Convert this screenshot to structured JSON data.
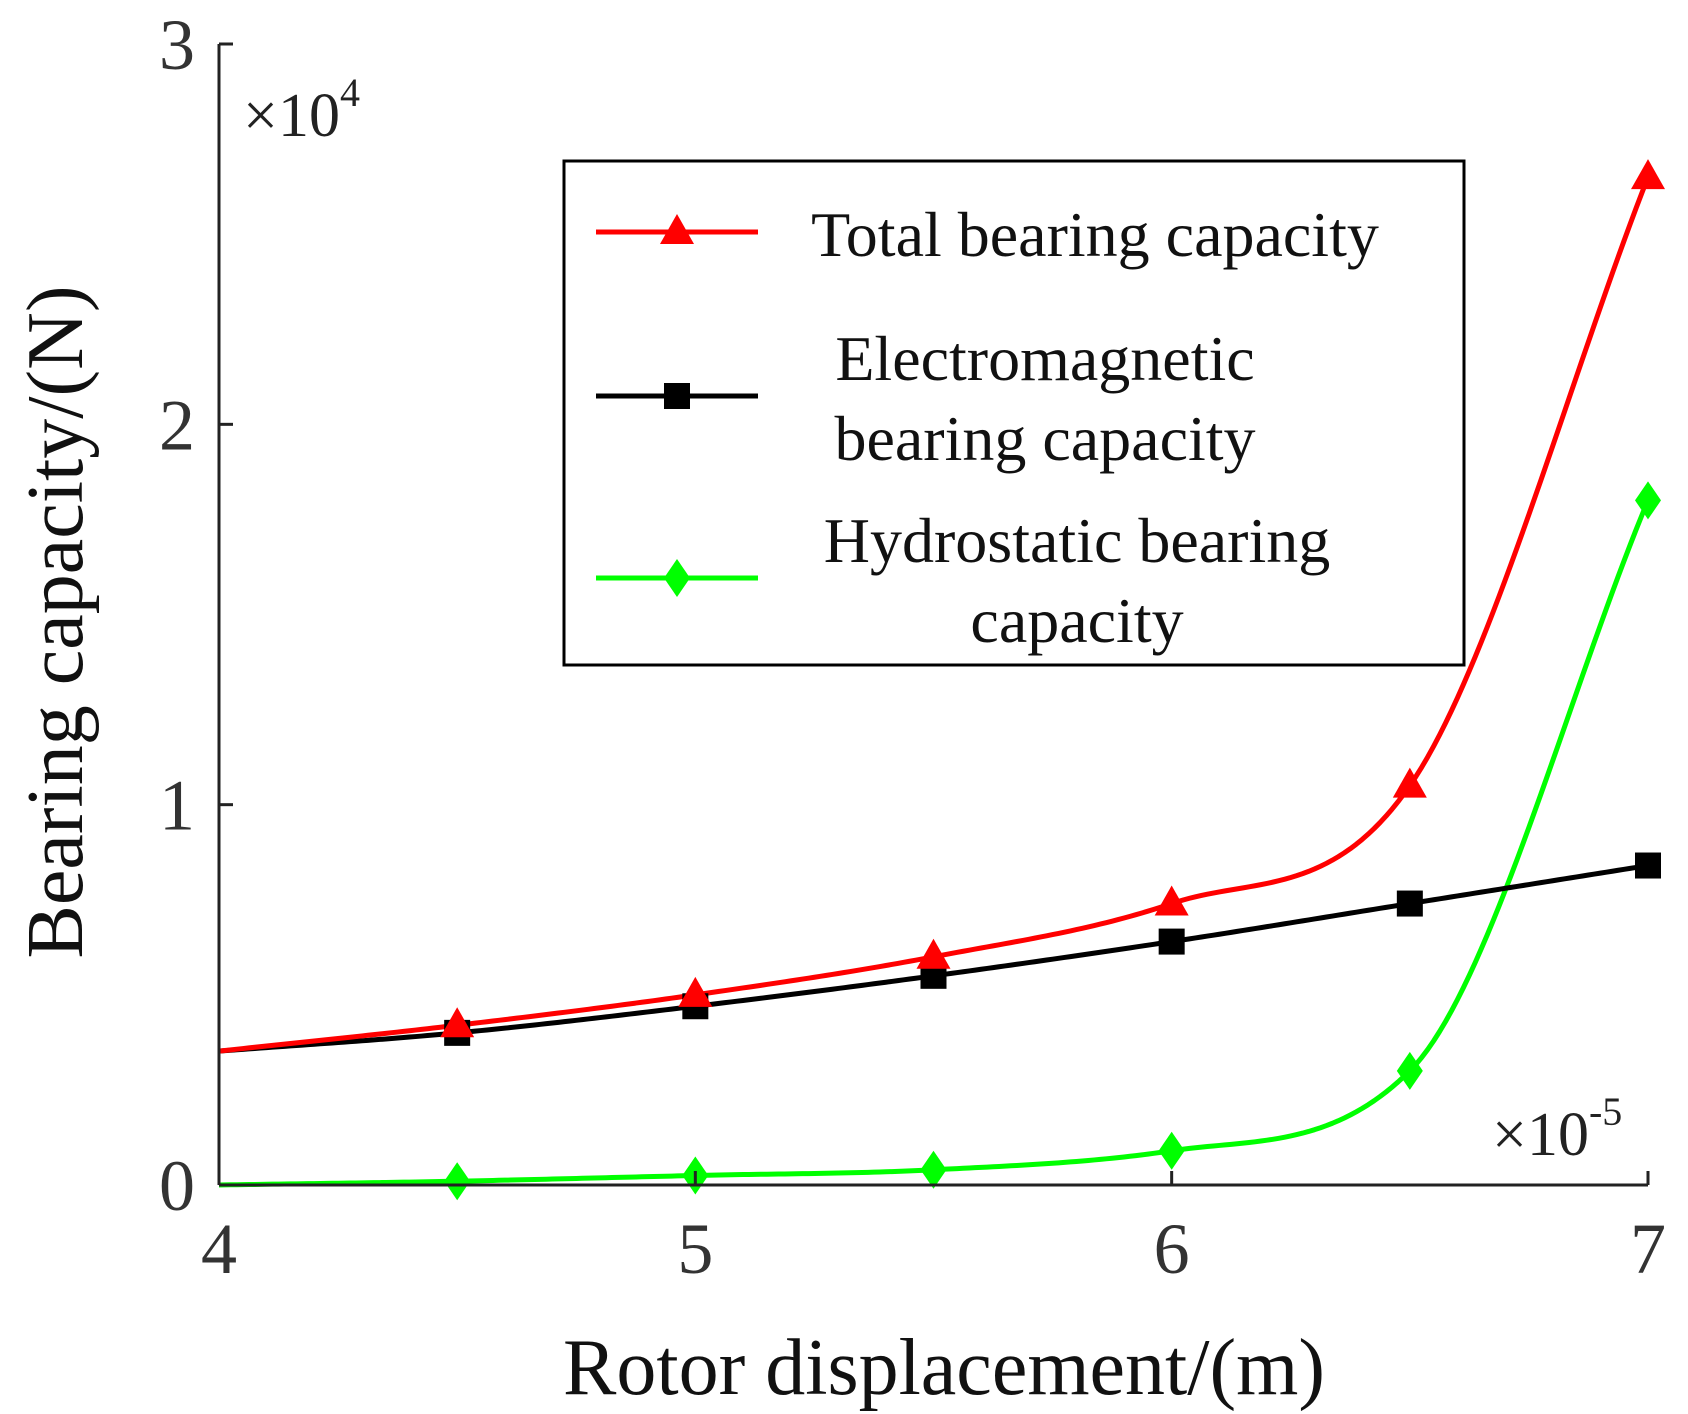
{
  "chart_data": {
    "type": "line",
    "title": "",
    "xlabel": "Rotor displacement/(m)",
    "ylabel": "Bearing capacity/(N)",
    "xlim": [
      4,
      7
    ],
    "ylim": [
      0,
      3
    ],
    "x_exponent": "-5",
    "y_exponent": "4",
    "x_ticks": [
      4,
      5,
      6,
      7
    ],
    "y_ticks": [
      0,
      1,
      2,
      3
    ],
    "x_tick_labels": [
      "4",
      "5",
      "6",
      "7"
    ],
    "y_tick_labels": [
      "0",
      "1",
      "2",
      "3"
    ],
    "grid": false,
    "legend_position": "top-right",
    "series": [
      {
        "name": "Total bearing capacity",
        "legend_lines": [
          "Total bearing capacity"
        ],
        "color": "#ff0000",
        "marker": "triangle",
        "x": [
          4.0,
          4.5,
          5.0,
          5.5,
          6.0,
          6.5,
          7.0
        ],
        "y": [
          0.352,
          0.42,
          0.5,
          0.6,
          0.74,
          1.05,
          2.65
        ],
        "markers_x": [
          4.5,
          5.0,
          5.5,
          6.0,
          6.5,
          7.0
        ]
      },
      {
        "name": "Electromagnetic bearing capacity",
        "legend_lines": [
          "Electromagnetic",
          "bearing capacity"
        ],
        "color": "#000000",
        "marker": "square",
        "x": [
          4.0,
          4.5,
          5.0,
          5.5,
          6.0,
          6.5,
          7.0
        ],
        "y": [
          0.352,
          0.4,
          0.47,
          0.55,
          0.64,
          0.74,
          0.84
        ],
        "markers_x": [
          4.5,
          5.0,
          5.5,
          6.0,
          6.5,
          7.0
        ]
      },
      {
        "name": "Hydrostatic bearing capacity",
        "legend_lines": [
          "Hydrostatic bearing",
          "capacity"
        ],
        "color": "#00ff00",
        "marker": "diamond",
        "x": [
          4.0,
          4.5,
          5.0,
          5.5,
          6.0,
          6.5,
          7.0
        ],
        "y": [
          0.0,
          0.01,
          0.025,
          0.04,
          0.09,
          0.3,
          1.8
        ],
        "markers_x": [
          4.5,
          5.0,
          5.5,
          6.0,
          6.5,
          7.0
        ]
      }
    ]
  }
}
